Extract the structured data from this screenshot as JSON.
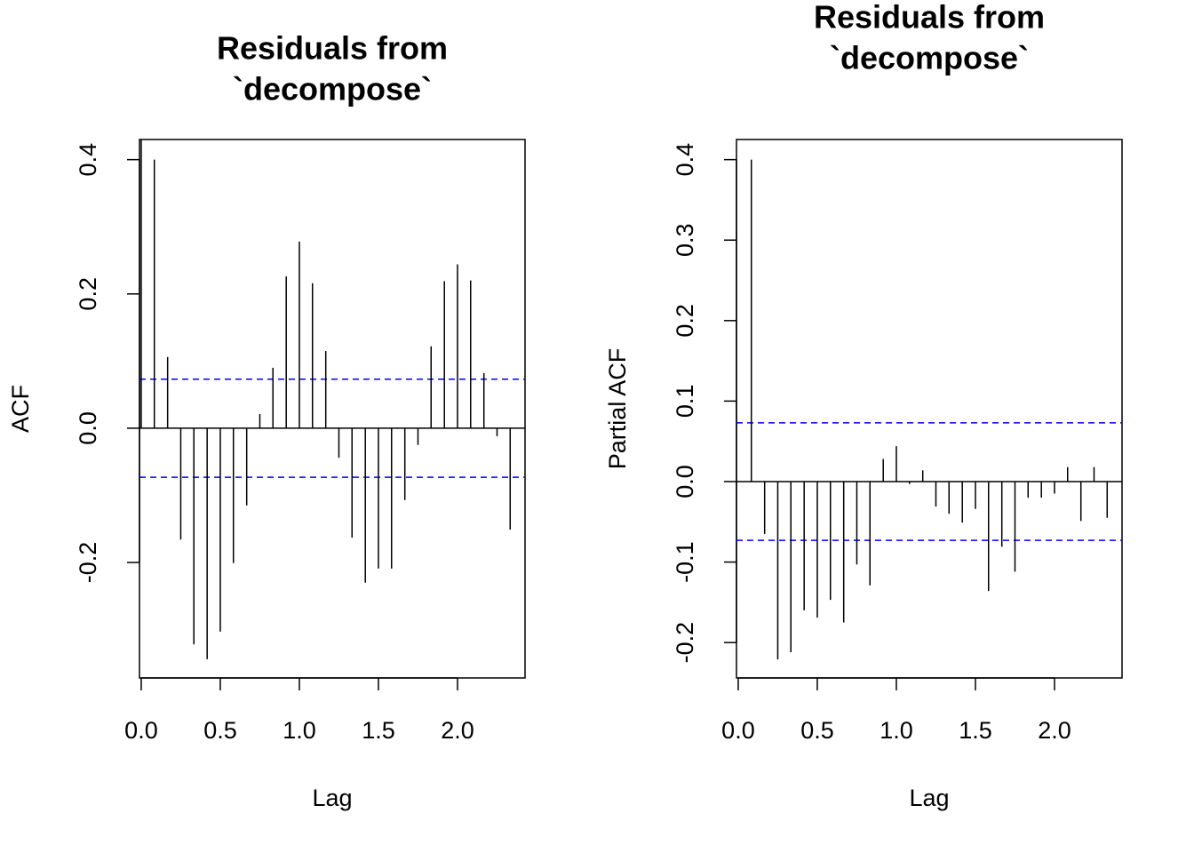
{
  "chart_data": [
    {
      "type": "acf",
      "title": [
        "Residuals from",
        "`decompose`"
      ],
      "xlabel": "Lag",
      "ylabel": "ACF",
      "x": [
        0,
        0.083,
        0.167,
        0.25,
        0.333,
        0.417,
        0.5,
        0.583,
        0.667,
        0.75,
        0.833,
        0.917,
        1,
        1.083,
        1.167,
        1.25,
        1.333,
        1.417,
        1.5,
        1.583,
        1.667,
        1.75,
        1.833,
        1.917,
        2,
        2.083,
        2.167,
        2.25,
        2.333
      ],
      "values": [
        1,
        0.4,
        0.106,
        -0.166,
        -0.322,
        -0.344,
        -0.303,
        -0.201,
        -0.115,
        0.021,
        0.09,
        0.226,
        0.278,
        0.216,
        0.115,
        -0.044,
        -0.163,
        -0.23,
        -0.209,
        -0.209,
        -0.107,
        -0.025,
        0.122,
        0.219,
        0.244,
        0.22,
        0.082,
        -0.012,
        -0.151
      ],
      "color": "#000000",
      "conf_limits": [
        0.073,
        -0.073
      ],
      "conf_color": "#0000ff",
      "xlim": [
        -0.011,
        2.427
      ],
      "ylim": [
        -0.372,
        0.43
      ],
      "xticks": [
        {
          "value": 0,
          "label": "0.0"
        },
        0.5,
        {
          "value": 1,
          "label": "1.0"
        },
        1.5,
        {
          "value": 2,
          "label": "2.0"
        }
      ],
      "yticks": [
        -0.2,
        {
          "value": 0,
          "label": "0.0"
        },
        0.2,
        0.4
      ]
    },
    {
      "type": "acf",
      "title": [
        "Residuals from",
        "`decompose`"
      ],
      "xlabel": "Lag",
      "ylabel": "Partial ACF",
      "x": [
        0.083,
        0.167,
        0.25,
        0.333,
        0.417,
        0.5,
        0.583,
        0.667,
        0.75,
        0.833,
        0.917,
        1,
        1.083,
        1.167,
        1.25,
        1.333,
        1.417,
        1.5,
        1.583,
        1.667,
        1.75,
        1.833,
        1.917,
        2,
        2.083,
        2.167,
        2.25,
        2.333
      ],
      "values": [
        0.4,
        -0.065,
        -0.221,
        -0.212,
        -0.16,
        -0.169,
        -0.147,
        -0.175,
        -0.103,
        -0.129,
        0.028,
        0.044,
        -0.003,
        0.014,
        -0.031,
        -0.04,
        -0.051,
        -0.034,
        -0.136,
        -0.081,
        -0.112,
        -0.02,
        -0.02,
        -0.015,
        0.018,
        -0.049,
        0.018,
        -0.045
      ],
      "color": "#000000",
      "conf_limits": [
        0.073,
        -0.073
      ],
      "conf_color": "#0000ff",
      "xlim": [
        -0.011,
        2.427
      ],
      "ylim": [
        -0.244,
        0.425
      ],
      "xticks": [
        {
          "value": 0,
          "label": "0.0"
        },
        0.5,
        {
          "value": 1,
          "label": "1.0"
        },
        1.5,
        {
          "value": 2,
          "label": "2.0"
        }
      ],
      "yticks": [
        -0.2,
        -0.1,
        {
          "value": 0,
          "label": "0.0"
        },
        0.1,
        0.2,
        0.3,
        0.4
      ]
    }
  ]
}
